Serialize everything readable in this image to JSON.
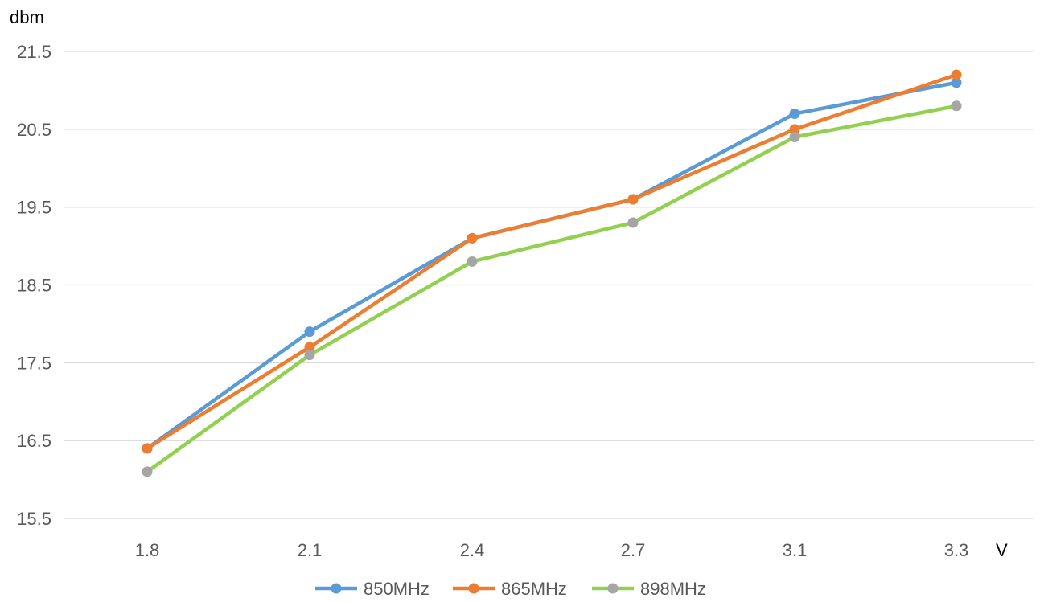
{
  "chart_data": {
    "type": "line",
    "ylabel": "dbm",
    "xlabel": "V",
    "categories": [
      "1.8",
      "2.1",
      "2.4",
      "2.7",
      "3.1",
      "3.3"
    ],
    "ylim": [
      15.5,
      21.5
    ],
    "yticks": [
      15.5,
      16.5,
      17.5,
      18.5,
      19.5,
      20.5,
      21.5
    ],
    "ytick_labels": [
      "15.5",
      "16.5",
      "17.5",
      "18.5",
      "19.5",
      "20.5",
      "21.5"
    ],
    "grid": true,
    "legend_position": "bottom",
    "series": [
      {
        "name": "850MHz",
        "color": "#5b9bd5",
        "marker_color": "#5b9bd5",
        "values": [
          16.4,
          17.9,
          19.1,
          19.6,
          20.7,
          21.1
        ]
      },
      {
        "name": "865MHz",
        "color": "#ed7d31",
        "marker_color": "#ed7d31",
        "values": [
          16.4,
          17.7,
          19.1,
          19.6,
          20.5,
          21.2
        ]
      },
      {
        "name": "898MHz",
        "color": "#92d050",
        "marker_color": "#a5a5a5",
        "values": [
          16.1,
          17.6,
          18.8,
          19.3,
          20.4,
          20.8
        ]
      }
    ]
  }
}
